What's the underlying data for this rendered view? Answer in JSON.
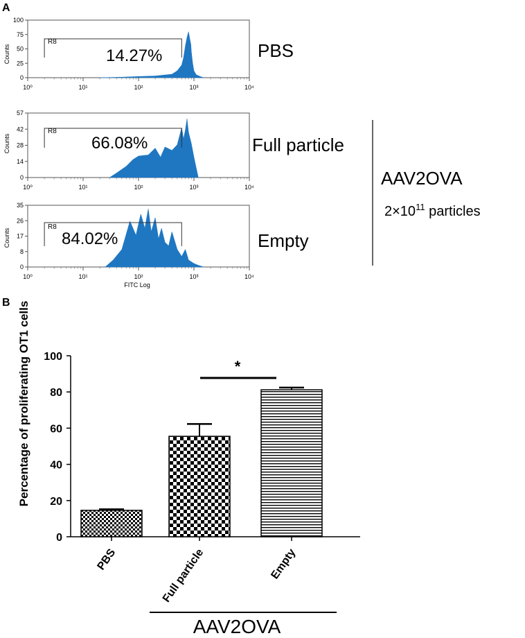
{
  "panel_a": {
    "label": "A",
    "y_axis_label": "Counts",
    "x_axis_label": "FITC Log",
    "x_tick_labels": [
      "10⁰",
      "10¹",
      "10²",
      "10³",
      "10⁴"
    ],
    "gate_label": "R8",
    "bracket": {
      "group_label": "AAV2OVA",
      "dose_base": "2×10",
      "dose_exp": "11",
      "dose_unit": " particles"
    },
    "plots": [
      {
        "name": "PBS",
        "condition": "PBS",
        "gate_percent": "14.27%",
        "y_ticks": [
          "100",
          "75",
          "50",
          "25",
          "0"
        ]
      },
      {
        "name": "Full particle",
        "condition": "Full particle",
        "gate_percent": "66.08%",
        "y_ticks": [
          "57",
          "42",
          "28",
          "14",
          "0"
        ]
      },
      {
        "name": "Empty",
        "condition": "Empty",
        "gate_percent": "84.02%",
        "y_ticks": [
          "35",
          "26",
          "17",
          "8",
          "0"
        ]
      }
    ]
  },
  "panel_b": {
    "label": "B",
    "significance": "*",
    "group_label": "AAV2OVA"
  },
  "chart_data": [
    {
      "type": "area",
      "title": "PBS",
      "xlabel": "FITC Log",
      "ylabel": "Counts",
      "x_scale": "log",
      "xlim": [
        1,
        10000
      ],
      "ylim": [
        0,
        100
      ],
      "gate": {
        "name": "R8",
        "range": [
          2,
          600
        ],
        "percent": 14.27
      },
      "x": [
        20,
        50,
        100,
        200,
        400,
        500,
        600,
        650,
        700,
        750,
        800,
        850,
        880,
        900,
        950,
        1000,
        1100,
        1300,
        1500
      ],
      "y": [
        0,
        1,
        2,
        3,
        6,
        12,
        22,
        35,
        55,
        70,
        80,
        65,
        58,
        45,
        25,
        12,
        5,
        2,
        0
      ]
    },
    {
      "type": "area",
      "title": "Full particle",
      "xlabel": "FITC Log",
      "ylabel": "Counts",
      "x_scale": "log",
      "xlim": [
        1,
        10000
      ],
      "ylim": [
        0,
        57
      ],
      "gate": {
        "name": "R8",
        "range": [
          2,
          600
        ],
        "percent": 66.08
      },
      "x": [
        30,
        40,
        60,
        80,
        100,
        150,
        200,
        250,
        300,
        400,
        500,
        600,
        650,
        700,
        750,
        800,
        900,
        1000,
        1200
      ],
      "y": [
        0,
        4,
        10,
        16,
        19,
        20,
        26,
        18,
        27,
        24,
        29,
        44,
        34,
        42,
        52,
        40,
        30,
        18,
        0
      ]
    },
    {
      "type": "area",
      "title": "Empty",
      "xlabel": "FITC Log",
      "ylabel": "Counts",
      "x_scale": "log",
      "xlim": [
        1,
        10000
      ],
      "ylim": [
        0,
        35
      ],
      "gate": {
        "name": "R8",
        "range": [
          2,
          600
        ],
        "percent": 84.02
      },
      "x": [
        25,
        35,
        50,
        70,
        90,
        110,
        130,
        150,
        170,
        200,
        230,
        260,
        300,
        350,
        400,
        500,
        600,
        700,
        800,
        1000,
        1200,
        1500
      ],
      "y": [
        0,
        4,
        10,
        26,
        18,
        30,
        22,
        33,
        20,
        28,
        16,
        22,
        14,
        12,
        20,
        10,
        6,
        10,
        4,
        2,
        1,
        0
      ]
    },
    {
      "type": "bar",
      "title": "",
      "xlabel": "",
      "ylabel": "Percentage of proliferating OT1 cells",
      "ylim": [
        0,
        100
      ],
      "y_ticks": [
        0,
        20,
        40,
        60,
        80,
        100
      ],
      "categories": [
        "PBS",
        "Full particle",
        "Empty"
      ],
      "values": [
        14.6,
        55.5,
        81.2
      ],
      "errors": [
        0.6,
        6.8,
        1.2
      ],
      "patterns": [
        "small-check",
        "large-check",
        "horizontal-lines"
      ]
    }
  ]
}
